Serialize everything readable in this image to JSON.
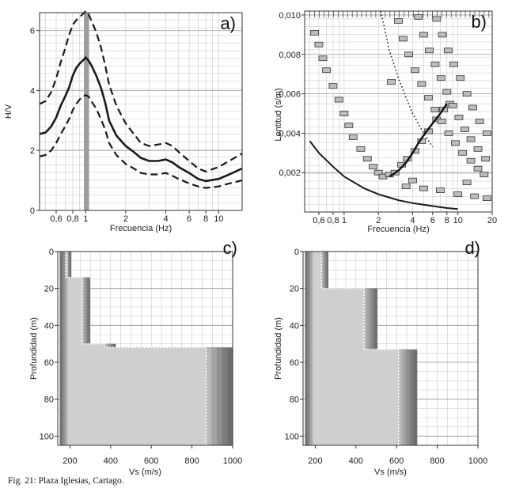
{
  "caption": "Fig. 21: Plaza Iglesias, Cartago.",
  "chart_data": [
    {
      "id": "a",
      "type": "line",
      "panel_label": "a)",
      "xlabel": "Frecuencia (Hz)",
      "ylabel": "H/V",
      "xscale": "log",
      "xlim": [
        0.45,
        15
      ],
      "ylim": [
        0,
        6.6
      ],
      "xticks": [
        0.6,
        0.8,
        1,
        2,
        4,
        6,
        8,
        10
      ],
      "xtick_labels": [
        "0,6",
        "0,8",
        "1",
        "2",
        "4",
        "6",
        "8",
        "10"
      ],
      "yticks": [
        0,
        2,
        4,
        6
      ],
      "ytick_labels": [
        "0",
        "2",
        "4",
        "6"
      ],
      "grid": true,
      "peak_band": [
        0.97,
        1.06
      ],
      "x": [
        0.45,
        0.5,
        0.55,
        0.6,
        0.65,
        0.7,
        0.75,
        0.8,
        0.85,
        0.9,
        0.95,
        1.0,
        1.05,
        1.1,
        1.2,
        1.3,
        1.4,
        1.5,
        1.7,
        2.0,
        2.3,
        2.6,
        3.0,
        3.5,
        4.0,
        4.5,
        5.0,
        6.0,
        7.0,
        8.0,
        10.0,
        12.0,
        15.0
      ],
      "series": [
        {
          "style": "solid",
          "values": [
            2.55,
            2.6,
            2.8,
            3.1,
            3.5,
            3.8,
            4.1,
            4.5,
            4.75,
            4.9,
            5.0,
            5.1,
            5.0,
            4.85,
            4.5,
            4.1,
            3.6,
            3.0,
            2.5,
            2.15,
            1.95,
            1.75,
            1.65,
            1.65,
            1.7,
            1.6,
            1.45,
            1.25,
            1.05,
            0.98,
            1.05,
            1.2,
            1.4
          ]
        },
        {
          "style": "dashed",
          "values": [
            3.55,
            3.65,
            3.95,
            4.4,
            4.95,
            5.4,
            5.85,
            6.2,
            6.35,
            6.45,
            6.55,
            6.65,
            6.55,
            6.35,
            5.95,
            5.45,
            4.85,
            4.2,
            3.5,
            2.9,
            2.55,
            2.25,
            2.15,
            2.2,
            2.25,
            2.15,
            1.95,
            1.65,
            1.4,
            1.3,
            1.45,
            1.65,
            1.9
          ]
        },
        {
          "style": "dashed",
          "values": [
            1.8,
            1.85,
            2.0,
            2.25,
            2.55,
            2.8,
            3.05,
            3.35,
            3.55,
            3.7,
            3.8,
            3.85,
            3.8,
            3.65,
            3.4,
            3.05,
            2.7,
            2.25,
            1.85,
            1.55,
            1.4,
            1.25,
            1.2,
            1.2,
            1.25,
            1.15,
            1.05,
            0.9,
            0.8,
            0.75,
            0.8,
            0.9,
            1.0
          ]
        }
      ]
    },
    {
      "id": "b",
      "type": "scatter",
      "panel_label": "b)",
      "xlabel": "Frecuencia (Hz)",
      "ylabel": "Lentitud (s/m)",
      "xscale": "log",
      "xlim": [
        0.45,
        20
      ],
      "ylim": [
        0,
        0.0102
      ],
      "xticks": [
        0.6,
        0.8,
        1,
        2,
        4,
        6,
        8,
        10,
        20
      ],
      "xtick_labels": [
        "0,6",
        "0,8",
        "1",
        "2",
        "4",
        "6",
        "8",
        "10",
        "20"
      ],
      "yticks": [
        0.002,
        0.004,
        0.006,
        0.008,
        0.01
      ],
      "ytick_labels": [
        "0,002",
        "0,004",
        "0,006",
        "0,008",
        "0,010"
      ],
      "grid": true,
      "lower_limit_curve": {
        "x": [
          0.5,
          0.6,
          0.8,
          1.0,
          1.5,
          2.0,
          3.0,
          4.0,
          6.0,
          8.0,
          10.0
        ],
        "y": [
          0.0036,
          0.003,
          0.0023,
          0.0018,
          0.0012,
          0.0009,
          0.0006,
          0.00045,
          0.0003,
          0.0002,
          0.00015
        ]
      },
      "dispersion_curve": {
        "x": [
          2.5,
          3.0,
          3.5,
          4.0,
          4.5,
          5.0,
          6.0,
          7.0,
          8.0
        ],
        "y": [
          0.0018,
          0.0021,
          0.0025,
          0.003,
          0.0035,
          0.0039,
          0.0045,
          0.005,
          0.0055
        ]
      },
      "dotted_curve": {
        "x": [
          2.1,
          2.5,
          3.0,
          3.5,
          4.0,
          5.0,
          6.0
        ],
        "y": [
          0.0102,
          0.0082,
          0.0068,
          0.0058,
          0.005,
          0.004,
          0.0033
        ]
      },
      "picks": [
        {
          "x": 0.55,
          "y": 0.0091
        },
        {
          "x": 0.6,
          "y": 0.0085
        },
        {
          "x": 0.65,
          "y": 0.0078
        },
        {
          "x": 0.7,
          "y": 0.0072
        },
        {
          "x": 0.8,
          "y": 0.0064
        },
        {
          "x": 0.9,
          "y": 0.0057
        },
        {
          "x": 1.0,
          "y": 0.005
        },
        {
          "x": 1.1,
          "y": 0.0044
        },
        {
          "x": 1.2,
          "y": 0.0038
        },
        {
          "x": 1.4,
          "y": 0.0032
        },
        {
          "x": 1.6,
          "y": 0.0027
        },
        {
          "x": 1.8,
          "y": 0.0023
        },
        {
          "x": 2.0,
          "y": 0.002
        },
        {
          "x": 2.2,
          "y": 0.0018
        },
        {
          "x": 2.5,
          "y": 0.0019
        },
        {
          "x": 2.8,
          "y": 0.002
        },
        {
          "x": 3.2,
          "y": 0.0024
        },
        {
          "x": 3.6,
          "y": 0.0027
        },
        {
          "x": 4.2,
          "y": 0.0031
        },
        {
          "x": 4.8,
          "y": 0.0036
        },
        {
          "x": 5.5,
          "y": 0.0041
        },
        {
          "x": 6.5,
          "y": 0.0047
        },
        {
          "x": 7.5,
          "y": 0.0052
        },
        {
          "x": 8.5,
          "y": 0.0055
        },
        {
          "x": 3.0,
          "y": 0.0097
        },
        {
          "x": 3.3,
          "y": 0.0088
        },
        {
          "x": 3.7,
          "y": 0.008
        },
        {
          "x": 4.2,
          "y": 0.0072
        },
        {
          "x": 4.8,
          "y": 0.0065
        },
        {
          "x": 5.5,
          "y": 0.0058
        },
        {
          "x": 6.3,
          "y": 0.0052
        },
        {
          "x": 7.2,
          "y": 0.0046
        },
        {
          "x": 8.3,
          "y": 0.004
        },
        {
          "x": 9.5,
          "y": 0.0035
        },
        {
          "x": 11.0,
          "y": 0.003
        },
        {
          "x": 13.0,
          "y": 0.0026
        },
        {
          "x": 15.0,
          "y": 0.0022
        },
        {
          "x": 17.0,
          "y": 0.0019
        },
        {
          "x": 4.5,
          "y": 0.0099
        },
        {
          "x": 5.0,
          "y": 0.009
        },
        {
          "x": 5.6,
          "y": 0.0082
        },
        {
          "x": 6.3,
          "y": 0.0075
        },
        {
          "x": 7.1,
          "y": 0.0068
        },
        {
          "x": 8.0,
          "y": 0.0061
        },
        {
          "x": 9.0,
          "y": 0.0054
        },
        {
          "x": 10.2,
          "y": 0.0048
        },
        {
          "x": 11.5,
          "y": 0.0042
        },
        {
          "x": 13.0,
          "y": 0.0037
        },
        {
          "x": 15.0,
          "y": 0.0032
        },
        {
          "x": 17.5,
          "y": 0.0027
        },
        {
          "x": 6.5,
          "y": 0.0098
        },
        {
          "x": 7.3,
          "y": 0.009
        },
        {
          "x": 8.2,
          "y": 0.0082
        },
        {
          "x": 9.2,
          "y": 0.0075
        },
        {
          "x": 10.5,
          "y": 0.0068
        },
        {
          "x": 12.0,
          "y": 0.006
        },
        {
          "x": 13.5,
          "y": 0.0053
        },
        {
          "x": 15.5,
          "y": 0.0046
        },
        {
          "x": 18.0,
          "y": 0.004
        },
        {
          "x": 2.6,
          "y": 0.0066
        },
        {
          "x": 4.0,
          "y": 0.0016
        },
        {
          "x": 5.0,
          "y": 0.0012
        },
        {
          "x": 7.0,
          "y": 0.0011
        },
        {
          "x": 10.0,
          "y": 0.0009
        },
        {
          "x": 14.0,
          "y": 0.0008
        },
        {
          "x": 18.0,
          "y": 0.0007
        },
        {
          "x": 3.5,
          "y": 0.0013
        },
        {
          "x": 12.0,
          "y": 0.0015
        }
      ]
    },
    {
      "id": "c",
      "type": "line",
      "panel_label": "c)",
      "xlabel": "Vs (m/s)",
      "ylabel": "Profundidad (m)",
      "xlim": [
        140,
        1000
      ],
      "ylim": [
        0,
        105
      ],
      "y_inverted": true,
      "xticks": [
        200,
        400,
        600,
        800,
        1000
      ],
      "xtick_labels": [
        "200",
        "400",
        "600",
        "800",
        "1000"
      ],
      "yticks": [
        0,
        20,
        40,
        60,
        80,
        100
      ],
      "ytick_labels": [
        "0",
        "20",
        "40",
        "60",
        "80",
        "100"
      ],
      "grid": true,
      "best_model": {
        "vs": [
          180,
          180,
          260,
          260,
          370,
          370,
          870,
          870
        ],
        "depth": [
          0,
          14,
          14,
          50,
          50,
          52,
          52,
          105
        ]
      }
    },
    {
      "id": "d",
      "type": "line",
      "panel_label": "d)",
      "xlabel": "Vs (m/s)",
      "ylabel": "Profundidad (m)",
      "xlim": [
        140,
        1000
      ],
      "ylim": [
        0,
        105
      ],
      "y_inverted": true,
      "xticks": [
        200,
        400,
        600,
        800,
        1000
      ],
      "xtick_labels": [
        "200",
        "400",
        "600",
        "800",
        "1000"
      ],
      "yticks": [
        0,
        20,
        40,
        60,
        80,
        100
      ],
      "ytick_labels": [
        "0",
        "20",
        "40",
        "60",
        "80",
        "100"
      ],
      "grid": true,
      "best_model": {
        "vs": [
          230,
          230,
          440,
          440,
          610,
          610
        ],
        "depth": [
          0,
          20,
          20,
          53,
          53,
          105
        ]
      }
    }
  ]
}
